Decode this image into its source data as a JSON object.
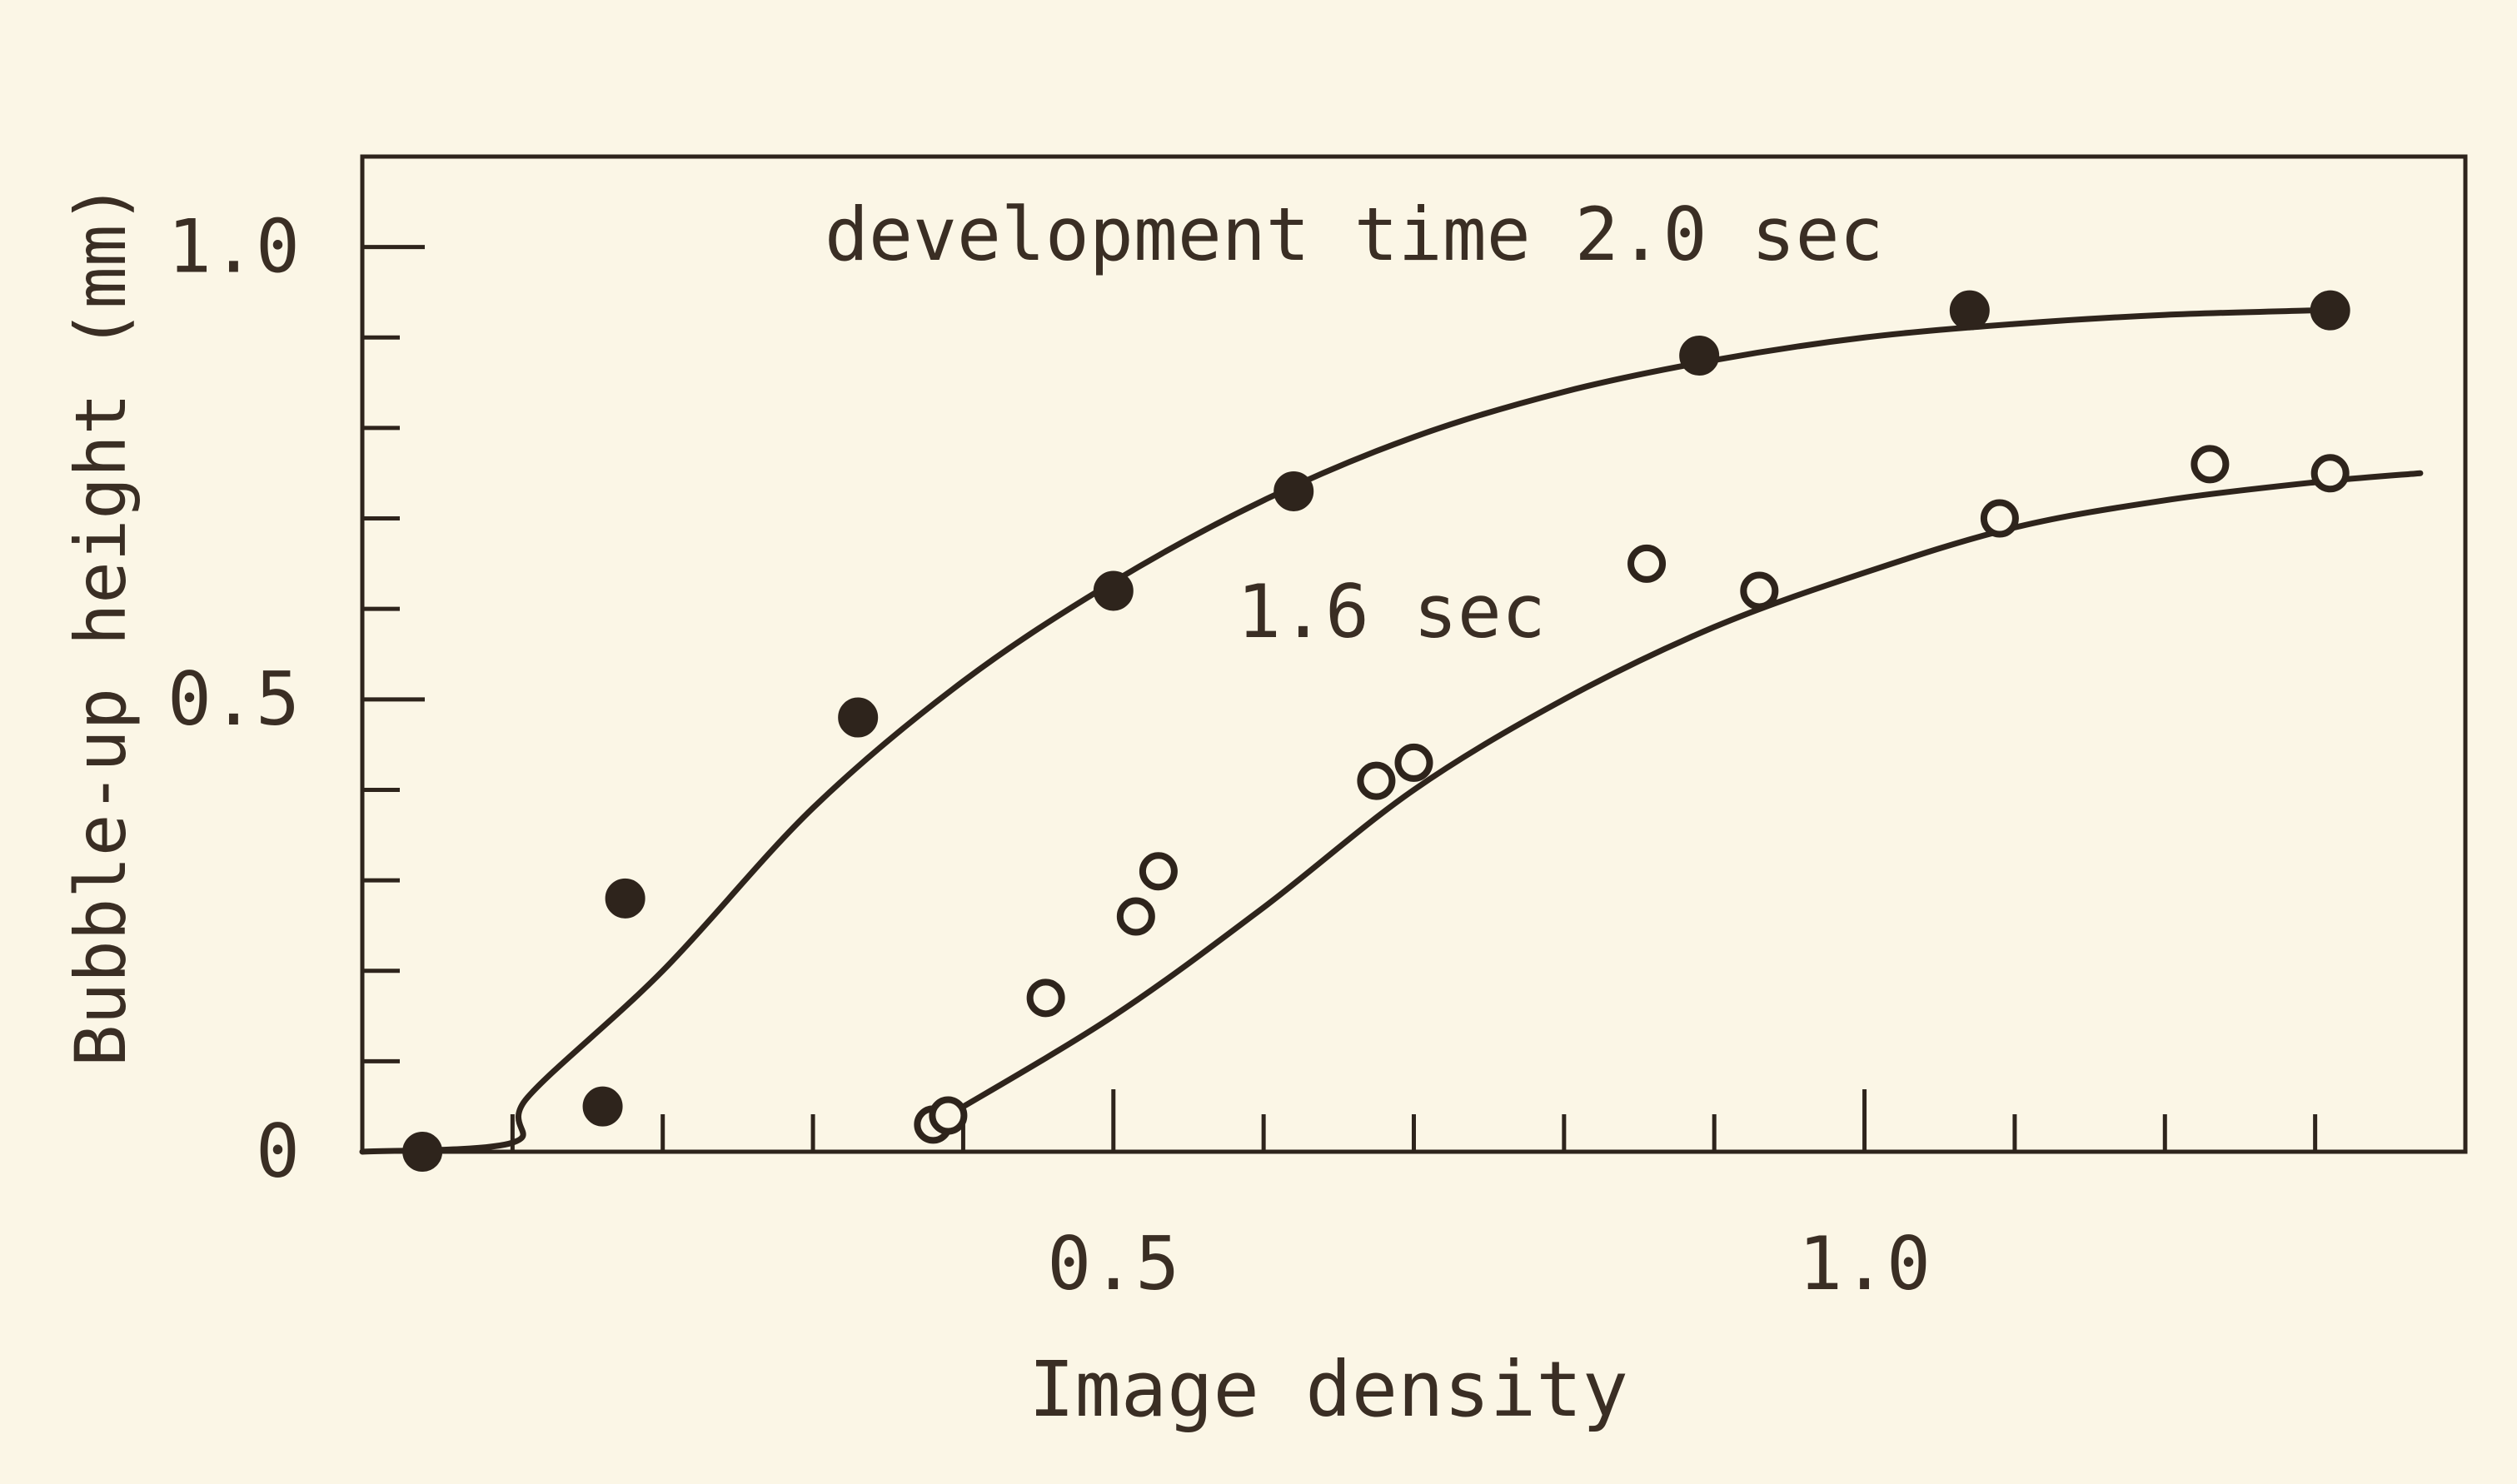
{
  "chart_data": {
    "type": "scatter",
    "title": "",
    "xlabel": "Image density",
    "ylabel": "Bubble-up height (mm)",
    "xlim": [
      0,
      1.4
    ],
    "ylim": [
      0,
      1.1
    ],
    "x_ticks": [
      {
        "value": 0.5,
        "label": "0.5"
      },
      {
        "value": 1.0,
        "label": "1.0"
      }
    ],
    "y_ticks": [
      {
        "value": 0,
        "label": "0"
      },
      {
        "value": 0.5,
        "label": "0.5"
      },
      {
        "value": 1.0,
        "label": "1.0"
      }
    ],
    "grid": false,
    "series": [
      {
        "name": "development time 2.0 sec",
        "marker": "filled-circle",
        "points": [
          {
            "x": 0.04,
            "y": 0.0
          },
          {
            "x": 0.16,
            "y": 0.05
          },
          {
            "x": 0.175,
            "y": 0.28
          },
          {
            "x": 0.33,
            "y": 0.48
          },
          {
            "x": 0.5,
            "y": 0.62
          },
          {
            "x": 0.62,
            "y": 0.73
          },
          {
            "x": 0.89,
            "y": 0.88
          },
          {
            "x": 1.07,
            "y": 0.93
          },
          {
            "x": 1.31,
            "y": 0.93
          }
        ],
        "curve": [
          {
            "x": 0.0,
            "y": 0.0
          },
          {
            "x": 0.1,
            "y": 0.01
          },
          {
            "x": 0.11,
            "y": 0.06
          },
          {
            "x": 0.2,
            "y": 0.2
          },
          {
            "x": 0.3,
            "y": 0.38
          },
          {
            "x": 0.4,
            "y": 0.52
          },
          {
            "x": 0.5,
            "y": 0.63
          },
          {
            "x": 0.6,
            "y": 0.72
          },
          {
            "x": 0.7,
            "y": 0.79
          },
          {
            "x": 0.8,
            "y": 0.84
          },
          {
            "x": 0.9,
            "y": 0.875
          },
          {
            "x": 1.0,
            "y": 0.9
          },
          {
            "x": 1.1,
            "y": 0.915
          },
          {
            "x": 1.2,
            "y": 0.925
          },
          {
            "x": 1.3,
            "y": 0.93
          }
        ]
      },
      {
        "name": "1.6 sec",
        "marker": "open-circle",
        "points": [
          {
            "x": 0.38,
            "y": 0.03
          },
          {
            "x": 0.39,
            "y": 0.04
          },
          {
            "x": 0.455,
            "y": 0.17
          },
          {
            "x": 0.515,
            "y": 0.26
          },
          {
            "x": 0.53,
            "y": 0.31
          },
          {
            "x": 0.675,
            "y": 0.41
          },
          {
            "x": 0.7,
            "y": 0.43
          },
          {
            "x": 0.855,
            "y": 0.65
          },
          {
            "x": 0.93,
            "y": 0.62
          },
          {
            "x": 1.09,
            "y": 0.7
          },
          {
            "x": 1.23,
            "y": 0.76
          },
          {
            "x": 1.31,
            "y": 0.75
          }
        ],
        "curve": [
          {
            "x": 0.39,
            "y": 0.04
          },
          {
            "x": 0.5,
            "y": 0.15
          },
          {
            "x": 0.6,
            "y": 0.27
          },
          {
            "x": 0.7,
            "y": 0.4
          },
          {
            "x": 0.8,
            "y": 0.5
          },
          {
            "x": 0.9,
            "y": 0.58
          },
          {
            "x": 1.0,
            "y": 0.64
          },
          {
            "x": 1.1,
            "y": 0.69
          },
          {
            "x": 1.2,
            "y": 0.72
          },
          {
            "x": 1.3,
            "y": 0.74
          },
          {
            "x": 1.37,
            "y": 0.75
          }
        ]
      }
    ],
    "annotations": [
      {
        "text": "development time 2.0 sec",
        "x": 0.3,
        "y": 1.0
      },
      {
        "text": "1.6 sec",
        "x": 0.58,
        "y": 0.55
      }
    ]
  }
}
